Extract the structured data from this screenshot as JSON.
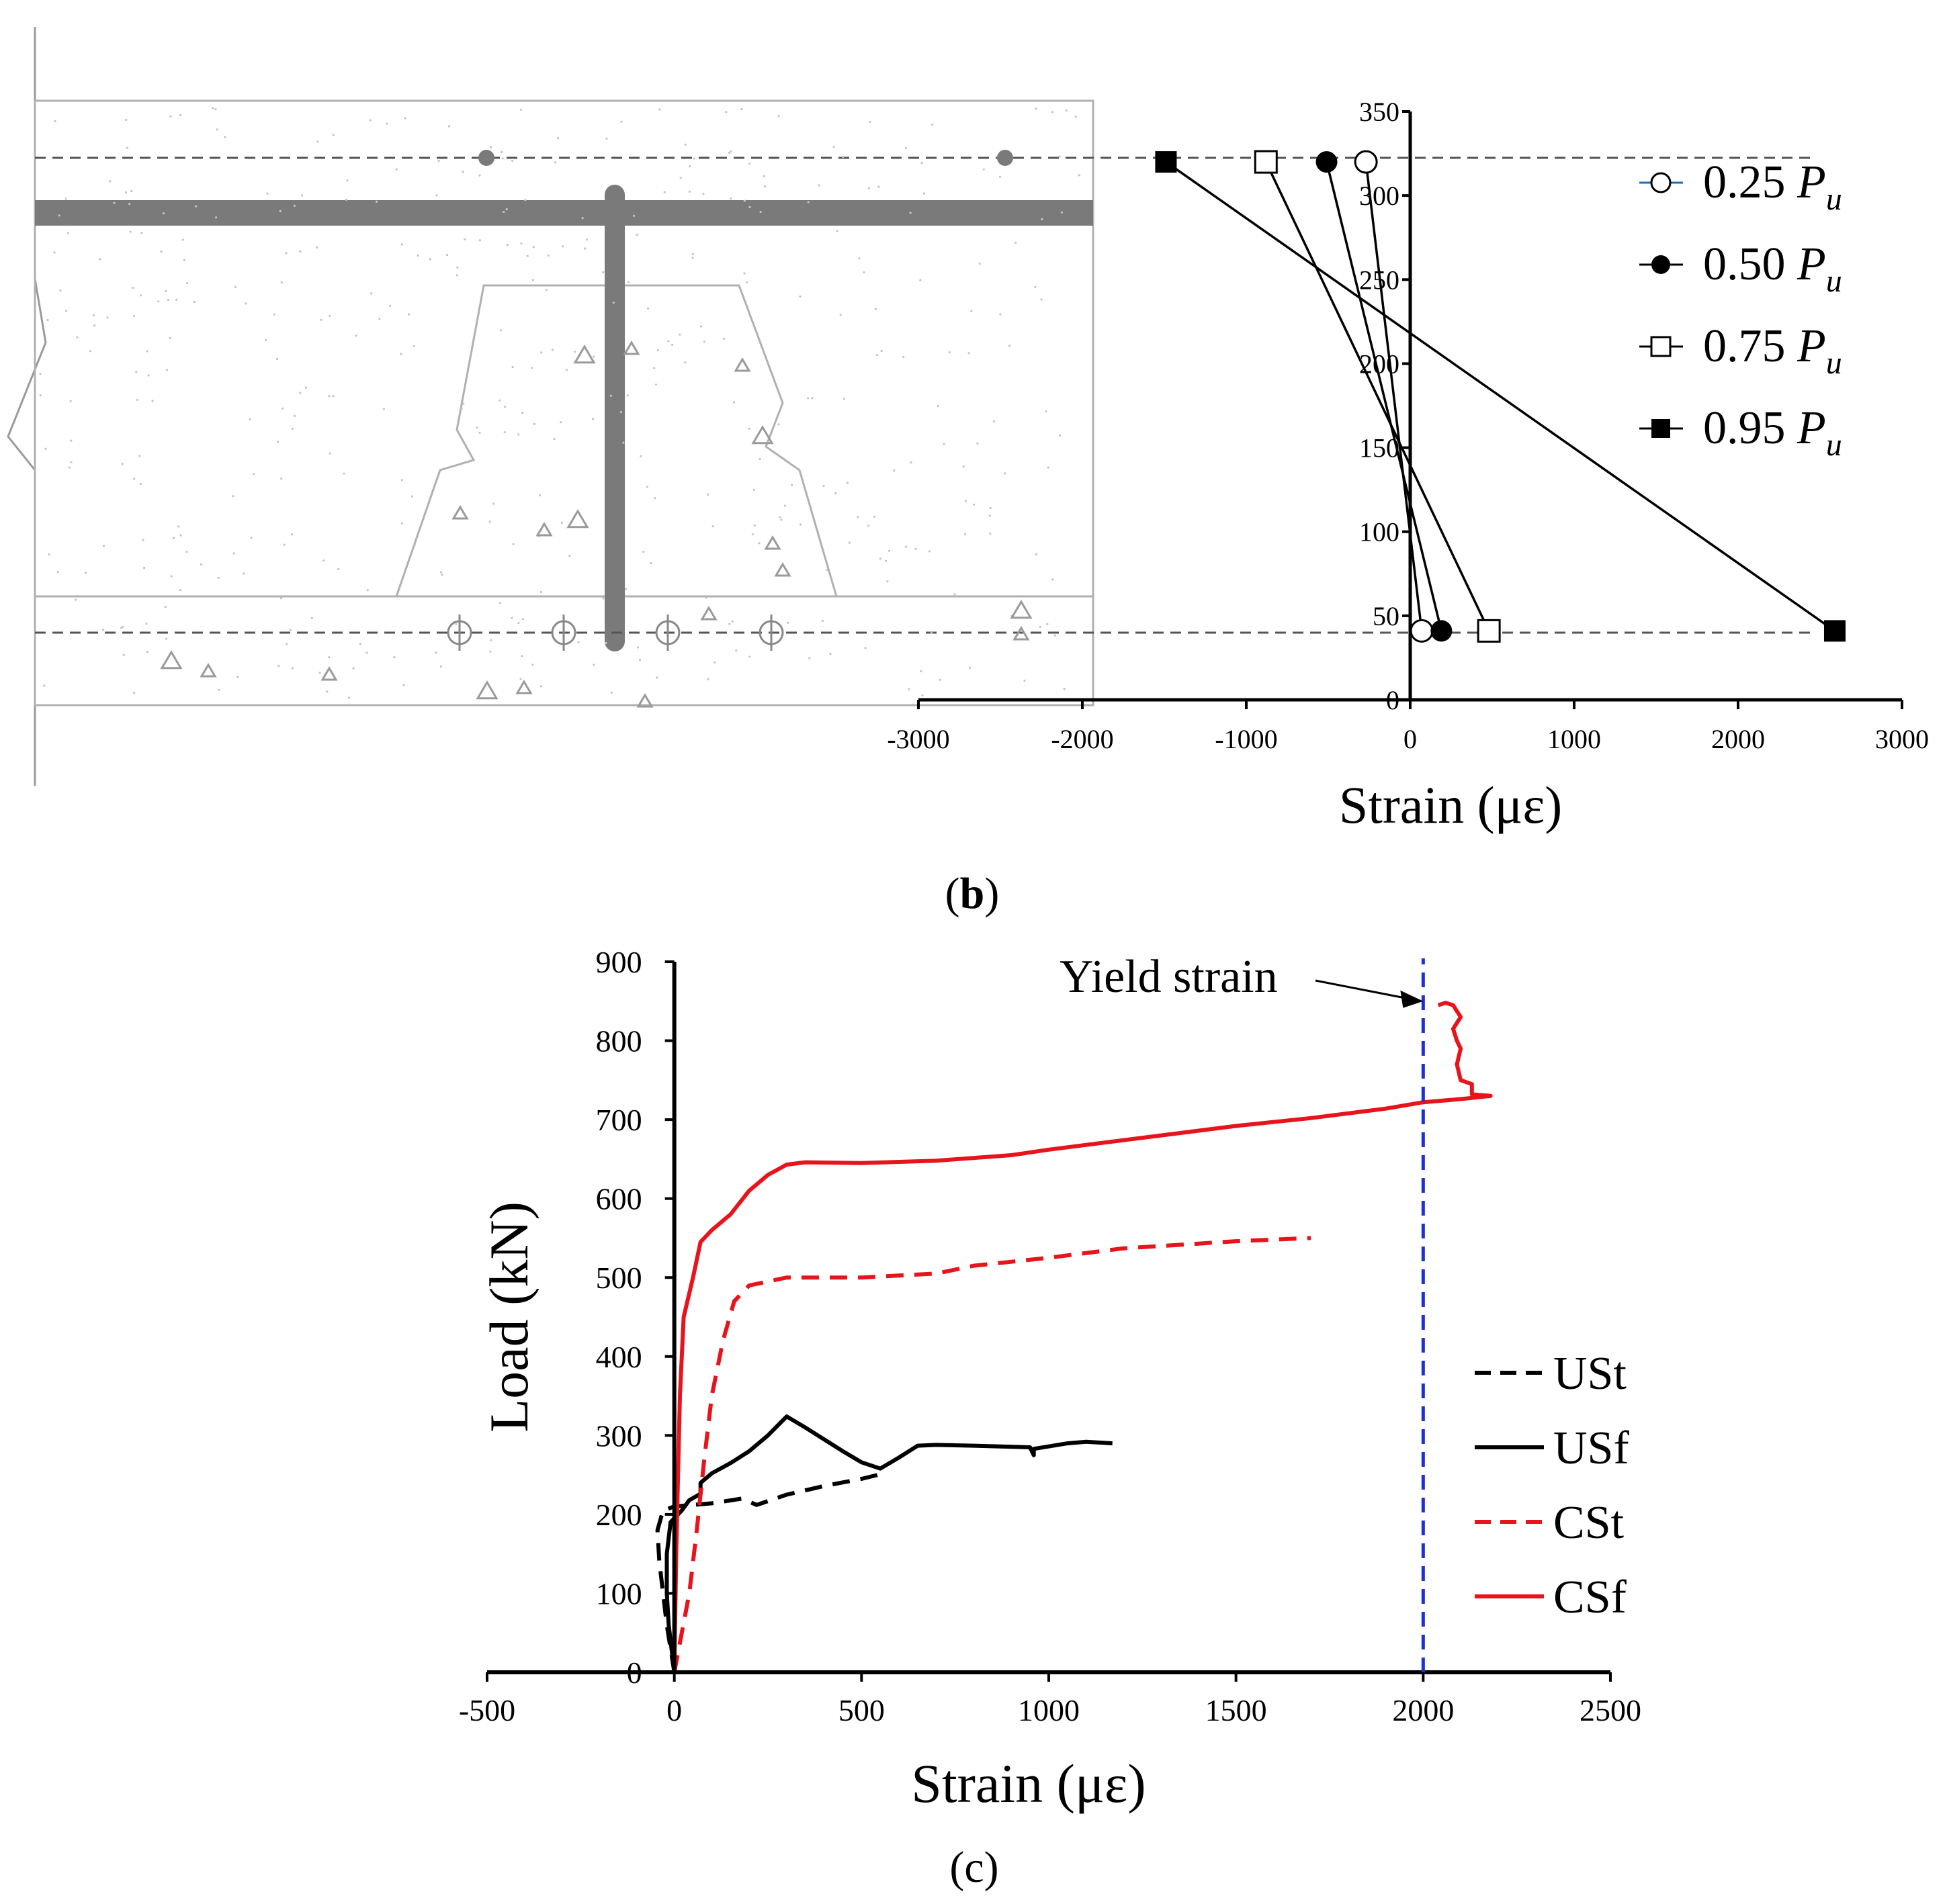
{
  "panel_b": {
    "label_open": "(",
    "label_letter": "b",
    "label_close": ")"
  },
  "panel_c": {
    "label": "(c)"
  },
  "chart_data": [
    {
      "id": "b",
      "type": "line",
      "title": "",
      "xlabel": "Strain (με)",
      "ylabel": "",
      "xlim": [
        -3000,
        3000
      ],
      "ylim": [
        0,
        350
      ],
      "xticks": [
        -3000,
        -2000,
        -1000,
        0,
        1000,
        2000,
        3000
      ],
      "yticks": [
        0,
        50,
        100,
        150,
        200,
        250,
        300,
        350
      ],
      "legend_position": "right",
      "grid": false,
      "series": [
        {
          "name": "0.25 Pu",
          "name_base": "0.25 ",
          "name_sub": "P",
          "name_subscript": "u",
          "marker": "open-circle",
          "color": "#1a6fb5",
          "points": [
            [
              -270,
              320
            ],
            [
              70,
              41
            ]
          ]
        },
        {
          "name": "0.50 Pu",
          "name_base": "0.50 ",
          "name_sub": "P",
          "name_subscript": "u",
          "marker": "filled-circle",
          "color": "#000000",
          "points": [
            [
              -510,
              320
            ],
            [
              190,
              41
            ]
          ]
        },
        {
          "name": "0.75 Pu",
          "name_base": "0.75 ",
          "name_sub": "P",
          "name_subscript": "u",
          "marker": "open-square",
          "color": "#000000",
          "points": [
            [
              -880,
              320
            ],
            [
              480,
              41
            ]
          ]
        },
        {
          "name": "0.95 Pu",
          "name_base": "0.95 ",
          "name_sub": "P",
          "name_subscript": "u",
          "marker": "filled-square",
          "color": "#000000",
          "points": [
            [
              -1490,
              320
            ],
            [
              2590,
              41
            ]
          ]
        }
      ]
    },
    {
      "id": "c",
      "type": "line",
      "title": "",
      "xlabel": "Strain (με)",
      "ylabel": "Load (kN)",
      "xlim": [
        -500,
        2500
      ],
      "ylim": [
        0,
        900
      ],
      "xticks": [
        -500,
        0,
        500,
        1000,
        1500,
        2000,
        2500
      ],
      "yticks": [
        0,
        100,
        200,
        300,
        400,
        500,
        600,
        700,
        800,
        900
      ],
      "legend_position": "right",
      "grid": false,
      "annotation": {
        "text": "Yield strain",
        "x": 2000,
        "y": 850
      },
      "reference_line": {
        "x": 2000,
        "color": "#1f2fd6"
      },
      "series": [
        {
          "name": "USt",
          "style": "dashed",
          "color": "#000000",
          "points": [
            [
              0,
              0
            ],
            [
              -20,
              60
            ],
            [
              -40,
              140
            ],
            [
              -45,
              180
            ],
            [
              -30,
              205
            ],
            [
              0,
              210
            ],
            [
              100,
              214
            ],
            [
              180,
              220
            ],
            [
              220,
              212
            ],
            [
              300,
              225
            ],
            [
              400,
              236
            ],
            [
              500,
              245
            ],
            [
              560,
              252
            ]
          ]
        },
        {
          "name": "USf",
          "style": "solid",
          "color": "#000000",
          "points": [
            [
              0,
              0
            ],
            [
              -15,
              60
            ],
            [
              -20,
              100
            ],
            [
              -20,
              150
            ],
            [
              -10,
              190
            ],
            [
              20,
              205
            ],
            [
              40,
              218
            ],
            [
              70,
              226
            ],
            [
              70,
              240
            ],
            [
              100,
              252
            ],
            [
              150,
              265
            ],
            [
              200,
              280
            ],
            [
              250,
              300
            ],
            [
              300,
              324
            ],
            [
              350,
              310
            ],
            [
              400,
              295
            ],
            [
              450,
              280
            ],
            [
              500,
              266
            ],
            [
              550,
              258
            ],
            [
              600,
              272
            ],
            [
              650,
              287
            ],
            [
              700,
              288
            ],
            [
              800,
              287
            ],
            [
              950,
              285
            ],
            [
              960,
              275
            ],
            [
              960,
              283
            ],
            [
              1050,
              290
            ],
            [
              1100,
              292
            ],
            [
              1170,
              290
            ]
          ]
        },
        {
          "name": "CSt",
          "style": "dashed",
          "color": "#e8141c",
          "points": [
            [
              0,
              0
            ],
            [
              20,
              50
            ],
            [
              40,
              100
            ],
            [
              60,
              180
            ],
            [
              80,
              270
            ],
            [
              100,
              350
            ],
            [
              130,
              420
            ],
            [
              160,
              470
            ],
            [
              200,
              490
            ],
            [
              300,
              500
            ],
            [
              500,
              500
            ],
            [
              700,
              505
            ],
            [
              800,
              515
            ],
            [
              1000,
              525
            ],
            [
              1200,
              537
            ],
            [
              1400,
              543
            ],
            [
              1500,
              546
            ],
            [
              1700,
              550
            ]
          ]
        },
        {
          "name": "CSf",
          "style": "solid",
          "color": "#e8141c",
          "points": [
            [
              0,
              0
            ],
            [
              5,
              150
            ],
            [
              10,
              250
            ],
            [
              15,
              350
            ],
            [
              25,
              450
            ],
            [
              50,
              500
            ],
            [
              70,
              545
            ],
            [
              100,
              560
            ],
            [
              150,
              580
            ],
            [
              200,
              610
            ],
            [
              250,
              630
            ],
            [
              300,
              643
            ],
            [
              350,
              646
            ],
            [
              500,
              645
            ],
            [
              700,
              648
            ],
            [
              900,
              655
            ],
            [
              1000,
              662
            ],
            [
              1300,
              680
            ],
            [
              1500,
              692
            ],
            [
              1700,
              702
            ],
            [
              1900,
              714
            ],
            [
              2000,
              722
            ],
            [
              2100,
              726
            ],
            [
              2180,
              730
            ],
            [
              2130,
              732
            ],
            [
              2130,
              745
            ],
            [
              2100,
              750
            ],
            [
              2090,
              770
            ],
            [
              2100,
              790
            ],
            [
              2090,
              800
            ],
            [
              2080,
              815
            ],
            [
              2100,
              830
            ],
            [
              2080,
              845
            ],
            [
              2060,
              848
            ],
            [
              2040,
              845
            ]
          ]
        }
      ]
    }
  ]
}
